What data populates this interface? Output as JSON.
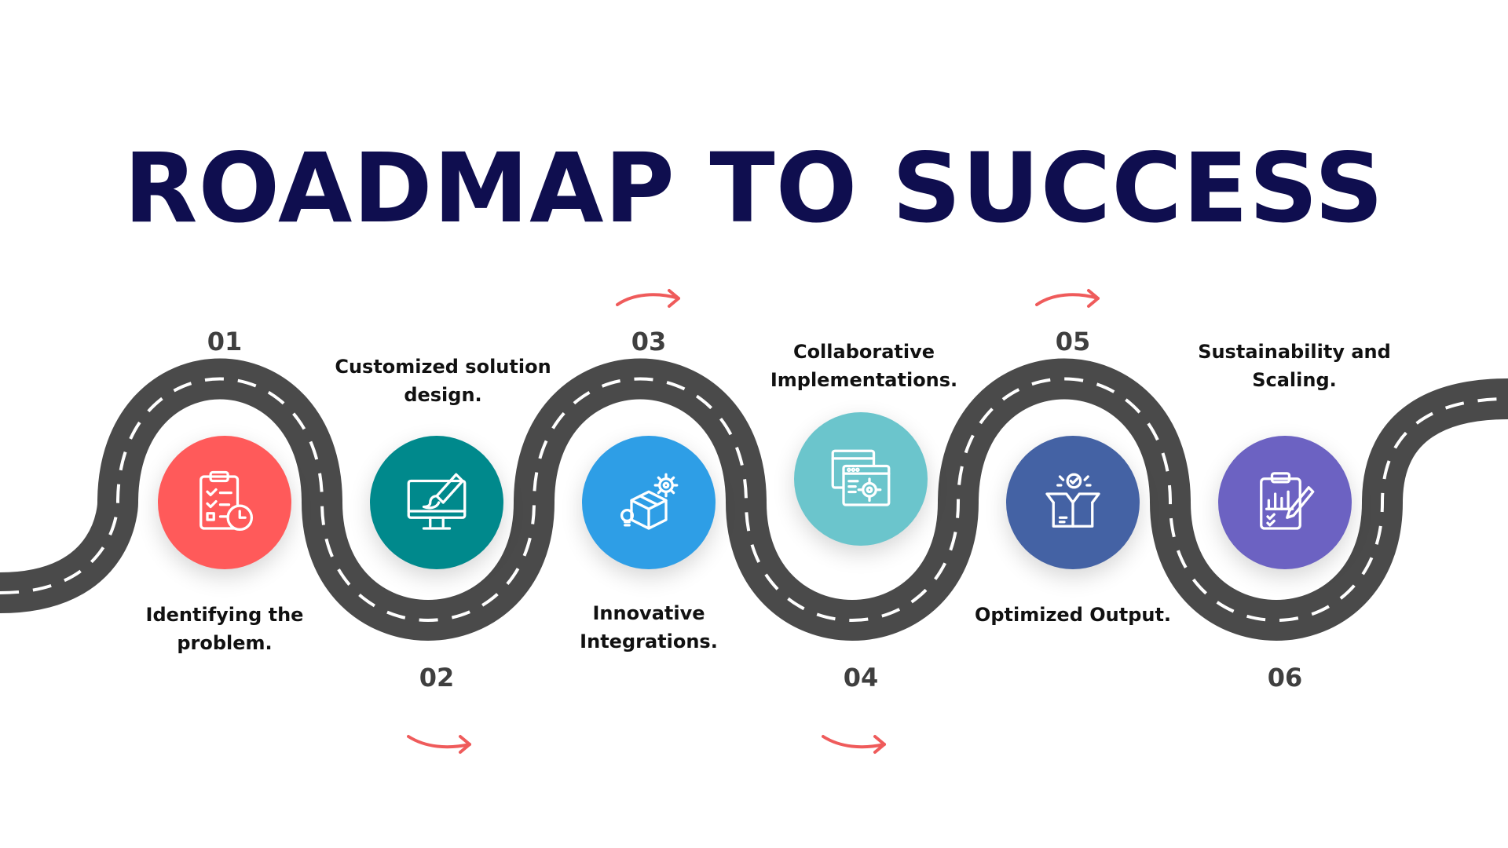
{
  "title": "ROADMAP TO SUCCESS",
  "colors": {
    "title": "#0f0e4f",
    "road": "#4a4a4a",
    "road_dash": "#ffffff",
    "arrow": "#ef5b5b",
    "number": "#3f3f3f"
  },
  "steps": [
    {
      "number": "01",
      "label": "Identifying the problem.",
      "icon": "checklist-clock-icon",
      "color": "#ff5a5a"
    },
    {
      "number": "02",
      "label": "Customized solution design.",
      "icon": "monitor-brush-icon",
      "color": "#00898c"
    },
    {
      "number": "03",
      "label": "Innovative Integrations.",
      "icon": "box-gear-bulb-icon",
      "color": "#2e9ee6"
    },
    {
      "number": "04",
      "label": "Collaborative Implementations.",
      "icon": "browser-gear-icon",
      "color": "#6bc5cc"
    },
    {
      "number": "05",
      "label": "Optimized Output.",
      "icon": "open-box-check-icon",
      "color": "#4462a4"
    },
    {
      "number": "06",
      "label": "Sustainability and Scaling.",
      "icon": "clipboard-chart-pen-icon",
      "color": "#6c62c2"
    }
  ]
}
